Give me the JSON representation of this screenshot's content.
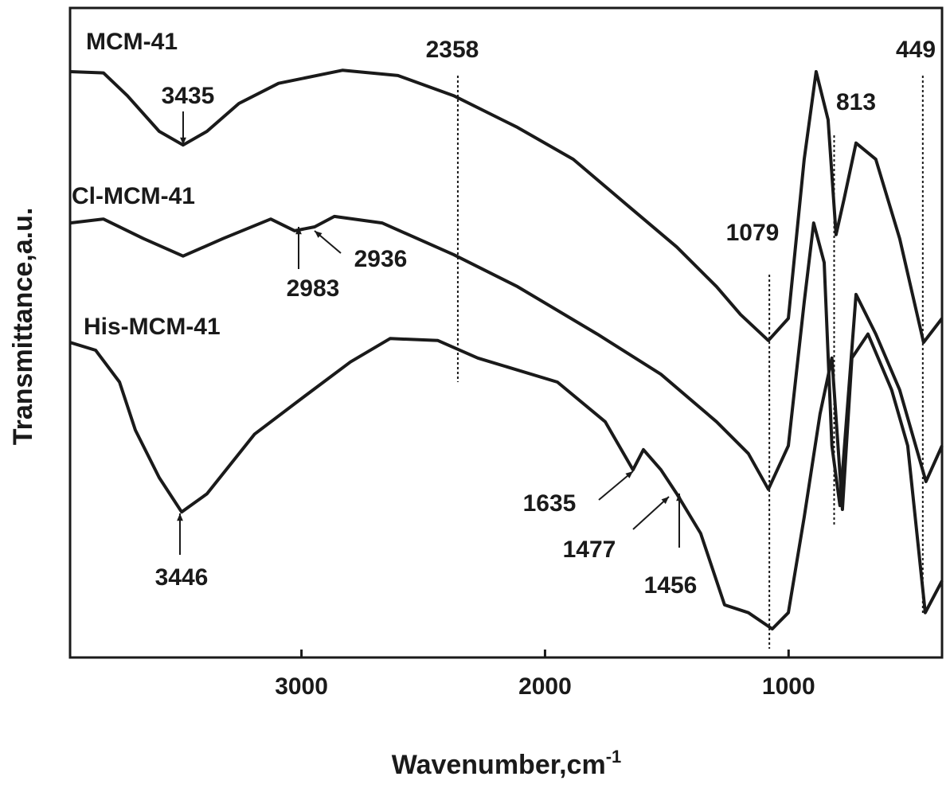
{
  "chart_data": {
    "type": "line",
    "xlabel": "Wavenumber,cm",
    "xlabel_sup": "-1",
    "ylabel": "Transmittance,a.u.",
    "xlim": [
      3950,
      370
    ],
    "ylim": [
      0,
      100
    ],
    "xticks": [
      3000,
      2000,
      1000
    ],
    "color": "#000000",
    "series": [
      {
        "name": "MCM-41",
        "color": "#1a1a1a",
        "x": [
          3950,
          3813,
          3715,
          3584,
          3486,
          3388,
          3257,
          3094,
          2832,
          2604,
          2375,
          2113,
          1884,
          1655,
          1459,
          1296,
          1197,
          1083,
          1001,
          936,
          887,
          838,
          805,
          772,
          723,
          642,
          544,
          446,
          370
        ],
        "values": [
          90.2,
          90.0,
          86.5,
          81.0,
          78.9,
          81.0,
          85.3,
          88.4,
          90.4,
          89.6,
          86.5,
          81.6,
          76.7,
          69.4,
          63.2,
          57.1,
          52.8,
          48.8,
          52.2,
          76.7,
          90.2,
          82.8,
          65.1,
          70.6,
          79.2,
          76.7,
          64.5,
          48.5,
          52.2
        ]
      },
      {
        "name": "Cl-MCM-41",
        "color": "#1a1a1a",
        "x": [
          3950,
          3813,
          3649,
          3486,
          3322,
          3126,
          3028,
          2946,
          2865,
          2669,
          2374,
          2113,
          1786,
          1524,
          1296,
          1165,
          1083,
          1001,
          936,
          897,
          854,
          822,
          789,
          723,
          642,
          544,
          436,
          370
        ],
        "values": [
          66.9,
          67.5,
          64.5,
          61.8,
          64.5,
          67.5,
          65.7,
          66.3,
          67.9,
          66.9,
          62.0,
          57.1,
          49.8,
          43.6,
          36.3,
          31.4,
          25.9,
          32.6,
          54.7,
          66.9,
          60.8,
          32.6,
          23.4,
          55.9,
          49.8,
          41.2,
          27.1,
          32.6
        ]
      },
      {
        "name": "His-MCM-41",
        "color": "#1a1a1a",
        "x": [
          3950,
          3845,
          3747,
          3682,
          3584,
          3492,
          3388,
          3192,
          2995,
          2799,
          2636,
          2440,
          2276,
          1949,
          1753,
          1639,
          1596,
          1524,
          1459,
          1361,
          1263,
          1165,
          1067,
          1001,
          936,
          871,
          822,
          779,
          740,
          674,
          577,
          511,
          439,
          370
        ],
        "values": [
          48.5,
          47.3,
          42.4,
          35.0,
          27.7,
          22.4,
          25.2,
          34.4,
          40.0,
          45.5,
          49.1,
          48.8,
          46.1,
          42.4,
          36.3,
          28.9,
          32.0,
          28.9,
          25.2,
          19.1,
          8.1,
          6.9,
          4.4,
          6.9,
          21.6,
          37.5,
          46.1,
          22.8,
          46.1,
          49.8,
          41.2,
          32.6,
          6.9,
          11.8
        ]
      }
    ],
    "vlines": [
      2358,
      1079,
      813,
      449
    ],
    "peak_labels": [
      3435,
      2983,
      2936,
      3446,
      1635,
      1477,
      1456
    ]
  }
}
